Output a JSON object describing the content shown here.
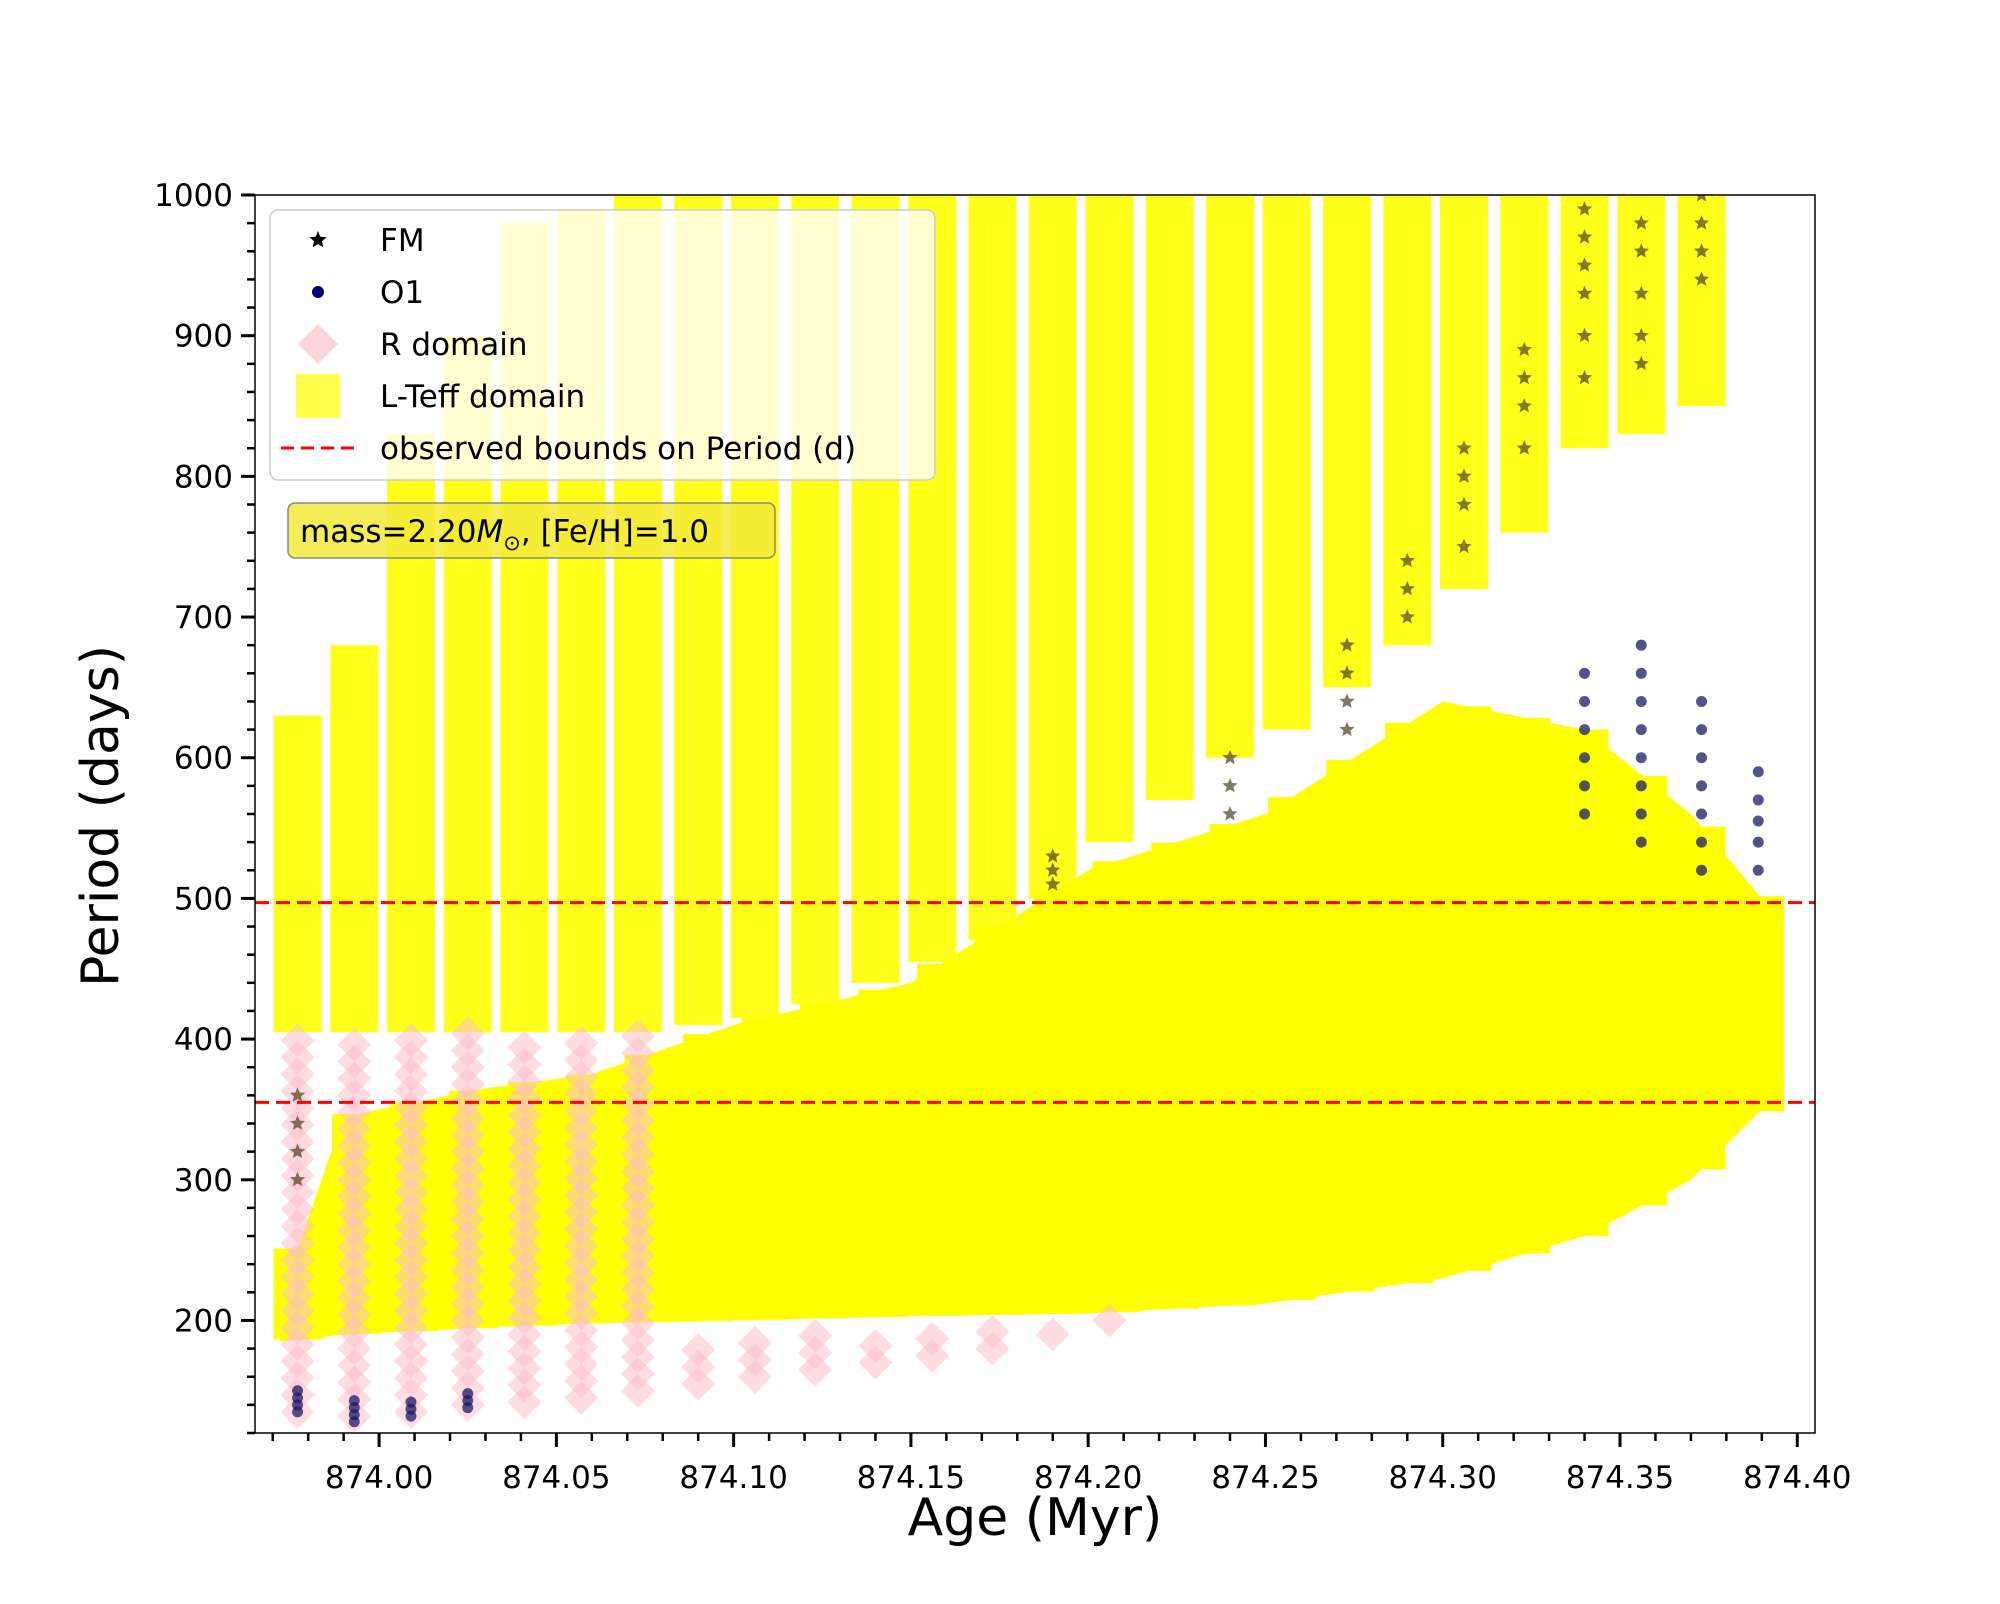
{
  "chart_data": {
    "type": "scatter",
    "xlabel": "Age (Myr)",
    "ylabel": "Period (days)",
    "xlim": [
      873.965,
      874.405
    ],
    "ylim": [
      120,
      1000
    ],
    "x_ticks": [
      874.0,
      874.05,
      874.1,
      874.15,
      874.2,
      874.25,
      874.3,
      874.35,
      874.4
    ],
    "x_tick_labels": [
      "874.00",
      "874.05",
      "874.10",
      "874.15",
      "874.20",
      "874.25",
      "874.30",
      "874.35",
      "874.40"
    ],
    "y_ticks": [
      200,
      300,
      400,
      500,
      600,
      700,
      800,
      900,
      1000
    ],
    "y_tick_labels": [
      "200",
      "300",
      "400",
      "500",
      "600",
      "700",
      "800",
      "900",
      "1000"
    ],
    "grid": false,
    "legend_position": "top-left",
    "legend": [
      {
        "label": "FM",
        "marker": "star",
        "color": "#000000"
      },
      {
        "label": "O1",
        "marker": "circle",
        "color": "#000080"
      },
      {
        "label": "R domain",
        "marker": "diamond",
        "color": "#ffc0cb"
      },
      {
        "label": "L-Teff domain",
        "marker": "square",
        "color": "#ffff00"
      },
      {
        "label": "observed bounds on Period (d)",
        "marker": "dashed-line",
        "color": "#ff0000"
      }
    ],
    "annotation": {
      "prefix": "mass=2.20",
      "symbol": "M",
      "subscript": "⊙",
      "suffix": ", [Fe/H]=1.0"
    },
    "observed_bounds": [
      355,
      497
    ],
    "lower_band": {
      "x": [
        873.972,
        873.99,
        874.03,
        874.06,
        874.1,
        874.15,
        874.2,
        874.25,
        874.3,
        874.34,
        874.37,
        874.39
      ],
      "y_low": [
        185,
        190,
        195,
        198,
        200,
        203,
        205,
        212,
        230,
        260,
        300,
        350
      ],
      "y_high": [
        215,
        345,
        365,
        375,
        410,
        440,
        520,
        560,
        640,
        620,
        560,
        500
      ]
    },
    "l_teff_columns": [
      {
        "x": 873.977,
        "y_low": 405,
        "y_high": 630
      },
      {
        "x": 873.993,
        "y_low": 405,
        "y_high": 680
      },
      {
        "x": 874.009,
        "y_low": 405,
        "y_high": 830
      },
      {
        "x": 874.025,
        "y_low": 405,
        "y_high": 900
      },
      {
        "x": 874.041,
        "y_low": 405,
        "y_high": 980
      },
      {
        "x": 874.057,
        "y_low": 405,
        "y_high": 990
      },
      {
        "x": 874.073,
        "y_low": 405,
        "y_high": 1000
      },
      {
        "x": 874.09,
        "y_low": 410,
        "y_high": 1000
      },
      {
        "x": 874.106,
        "y_low": 415,
        "y_high": 1000
      },
      {
        "x": 874.123,
        "y_low": 425,
        "y_high": 1000
      },
      {
        "x": 874.14,
        "y_low": 440,
        "y_high": 1000
      },
      {
        "x": 874.156,
        "y_low": 455,
        "y_high": 1000
      },
      {
        "x": 874.173,
        "y_low": 470,
        "y_high": 1000
      },
      {
        "x": 874.19,
        "y_low": 500,
        "y_high": 1000
      },
      {
        "x": 874.206,
        "y_low": 540,
        "y_high": 1000
      },
      {
        "x": 874.223,
        "y_low": 570,
        "y_high": 1000
      },
      {
        "x": 874.24,
        "y_low": 600,
        "y_high": 1000
      },
      {
        "x": 874.256,
        "y_low": 620,
        "y_high": 1000
      },
      {
        "x": 874.273,
        "y_low": 650,
        "y_high": 1000
      },
      {
        "x": 874.29,
        "y_low": 680,
        "y_high": 1000
      },
      {
        "x": 874.306,
        "y_low": 720,
        "y_high": 1000
      },
      {
        "x": 874.323,
        "y_low": 760,
        "y_high": 1000
      },
      {
        "x": 874.34,
        "y_low": 820,
        "y_high": 1000
      },
      {
        "x": 874.356,
        "y_low": 830,
        "y_high": 1000
      },
      {
        "x": 874.373,
        "y_low": 850,
        "y_high": 1000
      }
    ],
    "r_domain_points": [
      {
        "x": 873.977,
        "y_low": 135,
        "y_high": 405
      },
      {
        "x": 873.993,
        "y_low": 132,
        "y_high": 405
      },
      {
        "x": 874.009,
        "y_low": 135,
        "y_high": 405
      },
      {
        "x": 874.025,
        "y_low": 140,
        "y_high": 405
      },
      {
        "x": 874.041,
        "y_low": 142,
        "y_high": 405
      },
      {
        "x": 874.057,
        "y_low": 145,
        "y_high": 405
      },
      {
        "x": 874.073,
        "y_low": 150,
        "y_high": 405
      },
      {
        "x": 874.09,
        "y_low": 155,
        "y_high": 185
      },
      {
        "x": 874.106,
        "y_low": 160,
        "y_high": 185
      },
      {
        "x": 874.123,
        "y_low": 165,
        "y_high": 190
      },
      {
        "x": 874.14,
        "y_low": 170,
        "y_high": 190
      },
      {
        "x": 874.156,
        "y_low": 175,
        "y_high": 195
      },
      {
        "x": 874.173,
        "y_low": 180,
        "y_high": 195
      },
      {
        "x": 874.19,
        "y_low": 190,
        "y_high": 200
      },
      {
        "x": 874.206,
        "y_low": 200,
        "y_high": 205
      }
    ],
    "fm_points": [
      {
        "x": 873.977,
        "y": [
          300,
          320,
          340,
          360
        ]
      },
      {
        "x": 874.19,
        "y": [
          510,
          520,
          530
        ]
      },
      {
        "x": 874.24,
        "y": [
          560,
          580,
          600
        ]
      },
      {
        "x": 874.273,
        "y": [
          620,
          640,
          660,
          680
        ]
      },
      {
        "x": 874.29,
        "y": [
          700,
          720,
          740
        ]
      },
      {
        "x": 874.306,
        "y": [
          750,
          780,
          800,
          820
        ]
      },
      {
        "x": 874.323,
        "y": [
          820,
          850,
          870,
          890
        ]
      },
      {
        "x": 874.34,
        "y": [
          870,
          900,
          930,
          950,
          970,
          990
        ]
      },
      {
        "x": 874.356,
        "y": [
          880,
          900,
          930,
          960,
          980
        ]
      },
      {
        "x": 874.373,
        "y": [
          940,
          960,
          980,
          1000
        ]
      }
    ],
    "o1_points": [
      {
        "x": 873.977,
        "y": [
          135,
          140,
          145,
          150
        ]
      },
      {
        "x": 873.993,
        "y": [
          128,
          133,
          138,
          143
        ]
      },
      {
        "x": 874.009,
        "y": [
          132,
          137,
          142
        ]
      },
      {
        "x": 874.025,
        "y": [
          138,
          143,
          148
        ]
      },
      {
        "x": 874.34,
        "y": [
          560,
          580,
          600,
          620,
          640,
          660
        ]
      },
      {
        "x": 874.356,
        "y": [
          540,
          560,
          580,
          600,
          620,
          640,
          660,
          680
        ]
      },
      {
        "x": 874.373,
        "y": [
          520,
          540,
          560,
          580,
          600,
          620,
          640
        ]
      },
      {
        "x": 874.389,
        "y": [
          520,
          540,
          555,
          570,
          590
        ]
      }
    ]
  }
}
